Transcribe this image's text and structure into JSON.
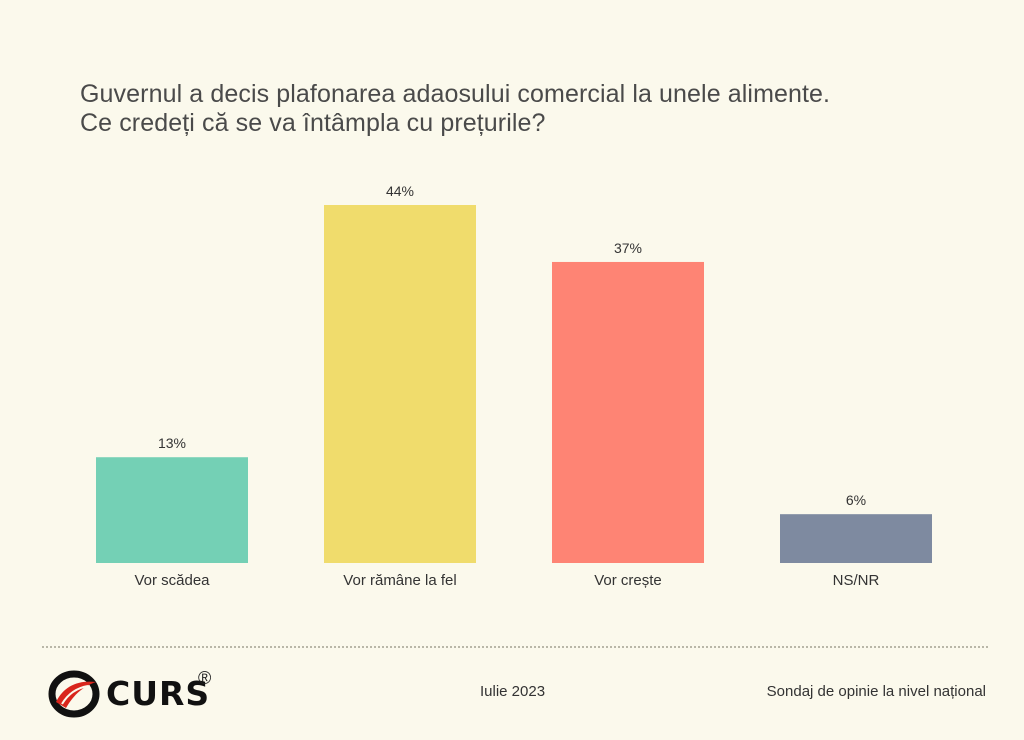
{
  "header": {
    "title_line1": "Guvernul a decis plafonarea adaosului comercial la unele alimente.",
    "title_line2": "Ce credeți că se va întâmpla cu prețurile?"
  },
  "chart_data": {
    "type": "bar",
    "title": "Guvernul a decis plafonarea adaosului comercial la unele alimente. Ce credeți că se va întâmpla cu prețurile?",
    "categories": [
      "Vor scădea",
      "Vor rămâne la fel",
      "Vor crește",
      "NS/NR"
    ],
    "values": [
      13,
      44,
      37,
      6
    ],
    "value_labels": [
      "13%",
      "44%",
      "37%",
      "6%"
    ],
    "colors": [
      "#74d0b5",
      "#f0dc6c",
      "#fe8474",
      "#7e8aa0"
    ],
    "ylim": [
      0,
      44
    ],
    "grid": false,
    "legend": "none"
  },
  "footer": {
    "brand": "CURS",
    "registered": "®",
    "date": "Iulie 2023",
    "note": "Sondaj de opinie la nivel național"
  }
}
